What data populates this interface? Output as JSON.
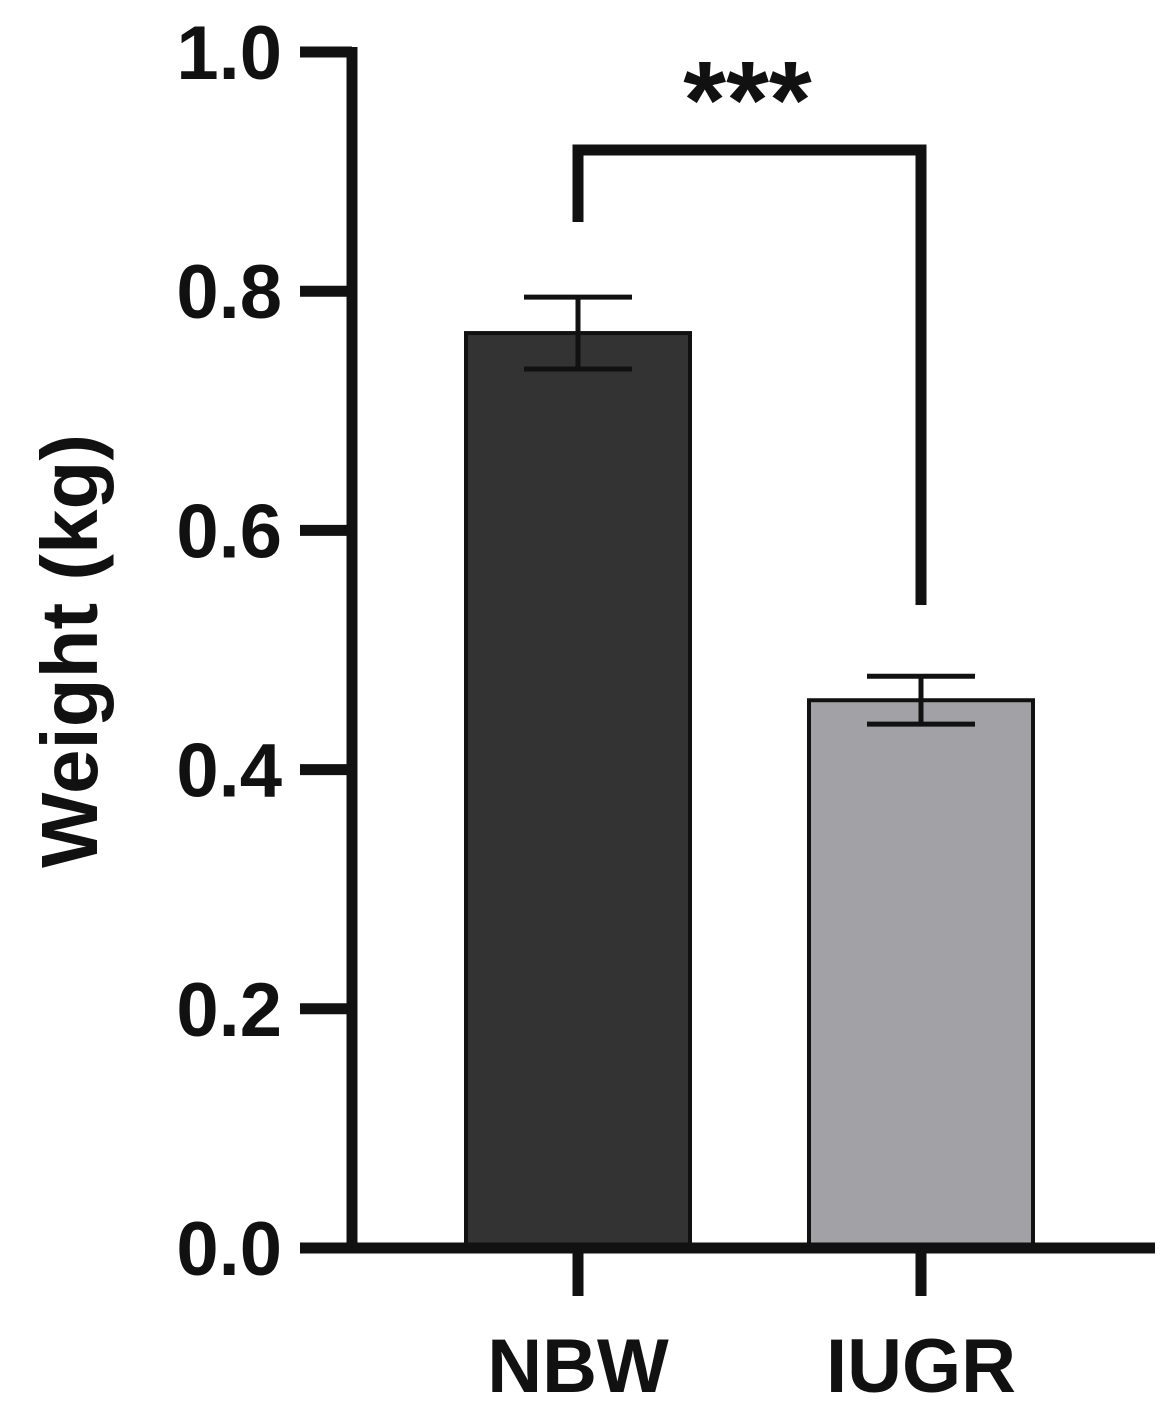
{
  "chart_data": {
    "type": "bar",
    "categories": [
      "NBW",
      "IUGR"
    ],
    "values": [
      0.765,
      0.458
    ],
    "error": [
      0.03,
      0.02
    ],
    "colors": [
      "#333333",
      "#a2a1a6"
    ],
    "ylabel": "Weight (kg)",
    "ylim": [
      0,
      1.0
    ],
    "yticks": [
      0.0,
      0.2,
      0.4,
      0.6,
      0.8,
      1.0
    ],
    "ytick_labels": [
      "0.0",
      "0.2",
      "0.4",
      "0.6",
      "0.8",
      "1.0"
    ],
    "significance": {
      "between": [
        "NBW",
        "IUGR"
      ],
      "label": "***"
    },
    "grid": false,
    "legend": "none"
  }
}
